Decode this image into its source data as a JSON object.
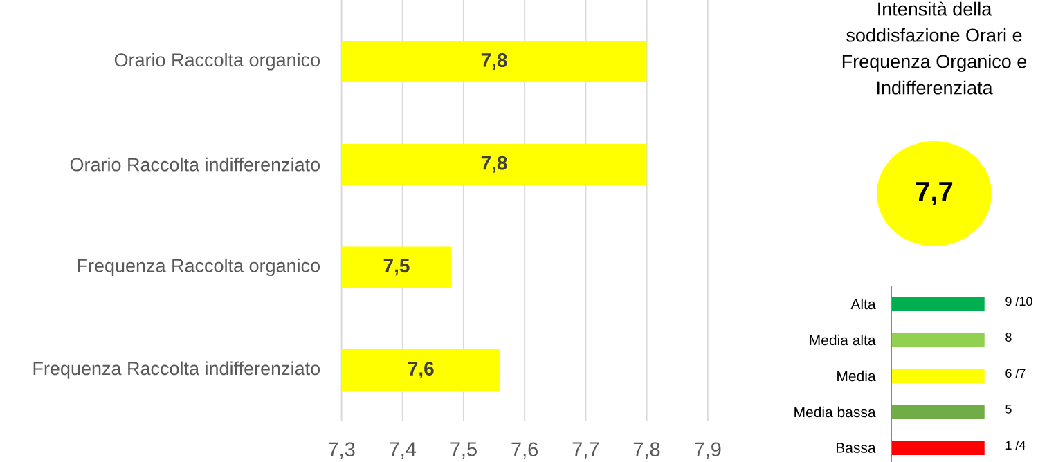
{
  "chart_data": [
    {
      "type": "bar",
      "orientation": "horizontal",
      "categories": [
        "Orario Raccolta organico",
        "Orario Raccolta indifferenziato",
        "Frequenza Raccolta organico",
        "Frequenza Raccolta indifferenziato"
      ],
      "values": [
        7.8,
        7.8,
        7.48,
        7.56
      ],
      "value_labels": [
        "7,8",
        "7,8",
        "7,5",
        "7,6"
      ],
      "color": "#ffff00",
      "xlim": [
        7.3,
        7.9
      ],
      "xticks": [
        {
          "value": 7.3,
          "label": "7,3"
        },
        {
          "value": 7.4,
          "label": "7,4"
        },
        {
          "value": 7.5,
          "label": "7,5"
        },
        {
          "value": 7.6,
          "label": "7,6"
        },
        {
          "value": 7.7,
          "label": "7,7"
        },
        {
          "value": 7.8,
          "label": "7,8"
        },
        {
          "value": 7.9,
          "label": "7,9"
        }
      ],
      "grid": "x"
    },
    {
      "type": "other",
      "title": "Intensità della soddisfazione Orari e Frequenza Organico e Indifferenziata",
      "annotations": [
        "7,7"
      ],
      "color": "#ffff00"
    },
    {
      "type": "other",
      "categories": [
        "Alta",
        "Media alta",
        "Media",
        "Media bassa",
        "Bassa"
      ],
      "colors": [
        "#00b050",
        "#92d050",
        "#ffff00",
        "#70ad47",
        "#ff0000"
      ],
      "annotations": [
        "9 /10",
        "8",
        "6 /7",
        "5",
        "1 /4"
      ]
    }
  ]
}
